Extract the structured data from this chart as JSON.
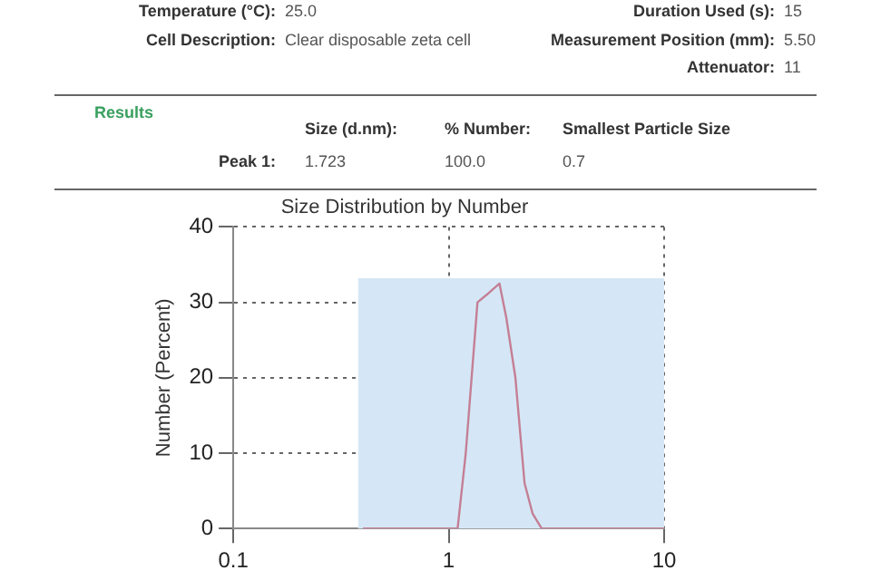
{
  "chart_data": {
    "type": "line",
    "title": "Size Distribution by Number",
    "ylabel": "Number (Percent)",
    "annotations": [
      "Temperature (°C):",
      "25.0",
      "Duration Used (s):",
      "15",
      "Cell Description:",
      "Clear disposable zeta cell",
      "Measurement Position (mm):",
      "5.50",
      "Attenuator:",
      "11",
      "Results",
      "Size (d.nm):",
      "% Number:",
      "Smallest Particle Size",
      "Peak 1:",
      "1.723",
      "100.0",
      "0.7"
    ],
    "series": [
      {
        "color": "#c47f95",
        "x": [
          0.4,
          0.7,
          1.0,
          1.1,
          1.2,
          1.36,
          1.5,
          1.72,
          1.85,
          2.04,
          2.25,
          2.45,
          2.7,
          4,
          10
        ],
        "values": [
          0,
          0,
          0,
          0,
          10,
          30,
          31,
          32.5,
          28,
          20,
          6,
          2,
          0,
          0,
          0
        ]
      }
    ],
    "bands": [
      {
        "axis": "x",
        "from": 0.38,
        "to": 10,
        "color": "#d5e7f6"
      }
    ],
    "log": "x",
    "xlim": [
      0.1,
      10
    ],
    "xticks": [
      0.1,
      1,
      10
    ],
    "ylim": [
      0,
      40
    ],
    "yticks": [
      0,
      10,
      20,
      30,
      40
    ],
    "grid": true,
    "marker": "none",
    "line_style": "solid",
    "legend": false
  }
}
